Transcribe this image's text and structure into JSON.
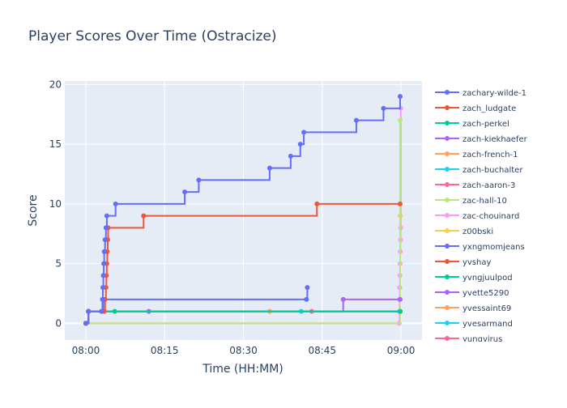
{
  "chart_data": {
    "type": "line",
    "line_shape": "step-after",
    "title": "Player Scores Over Time (Ostracize)",
    "xlabel": "Time (HH:MM)",
    "ylabel": "Score",
    "x_range": [
      "07:56",
      "09:04"
    ],
    "y_range": [
      -1.4,
      20.3
    ],
    "x_ticks": [
      {
        "value": "08:00",
        "label": "08:00"
      },
      {
        "value": "08:15",
        "label": "08:15"
      },
      {
        "value": "08:30",
        "label": "08:30"
      },
      {
        "value": "08:45",
        "label": "08:45"
      },
      {
        "value": "09:00",
        "label": "09:00"
      }
    ],
    "y_ticks": [
      0,
      5,
      10,
      15,
      20
    ],
    "grid": true,
    "legend_position": "right",
    "series": [
      {
        "name": "zachary-wilde-1",
        "color": "#636EFA",
        "points": [
          [
            "08:00",
            0
          ],
          [
            "08:00:30",
            1
          ],
          [
            "08:03",
            1
          ],
          [
            "08:03:10",
            2
          ],
          [
            "08:03:15",
            3
          ],
          [
            "08:03:20",
            4
          ],
          [
            "08:03:25",
            5
          ],
          [
            "08:03:30",
            6
          ],
          [
            "08:03:40",
            7
          ],
          [
            "08:03:50",
            8
          ],
          [
            "08:04",
            9
          ],
          [
            "08:05:40",
            10
          ],
          [
            "08:18:50",
            11
          ],
          [
            "08:21:30",
            12
          ],
          [
            "08:35",
            13
          ],
          [
            "08:39",
            14
          ],
          [
            "08:40:50",
            15
          ],
          [
            "08:41:30",
            16
          ],
          [
            "08:51:30",
            17
          ],
          [
            "08:56:40",
            18
          ],
          [
            "08:59:50",
            19
          ]
        ]
      },
      {
        "name": "zach_ludgate",
        "color": "#EF553B",
        "points": [
          [
            "08:00",
            0
          ],
          [
            "08:00:30",
            1
          ],
          [
            "08:03:30",
            1
          ],
          [
            "08:03:40",
            2
          ],
          [
            "08:03:50",
            3
          ],
          [
            "08:03:55",
            4
          ],
          [
            "08:04",
            5
          ],
          [
            "08:04:05",
            6
          ],
          [
            "08:04:10",
            7
          ],
          [
            "08:04:15",
            8
          ],
          [
            "08:11",
            9
          ],
          [
            "08:44",
            10
          ],
          [
            "08:59:50",
            10
          ]
        ]
      },
      {
        "name": "zach-perkel",
        "color": "#00CC96",
        "points": [
          [
            "08:00",
            0
          ],
          [
            "08:00:30",
            1
          ],
          [
            "08:05:30",
            1
          ],
          [
            "08:59:50",
            1
          ]
        ]
      },
      {
        "name": "zach-kiekhaefer",
        "color": "#AB63FA",
        "points": [
          [
            "08:00",
            0
          ],
          [
            "08:00:30",
            1
          ],
          [
            "08:12",
            1
          ],
          [
            "08:49",
            2
          ],
          [
            "08:59:50",
            2
          ]
        ]
      },
      {
        "name": "zach-french-1",
        "color": "#FFA15A",
        "points": [
          [
            "08:00",
            0
          ],
          [
            "08:00:30",
            1
          ],
          [
            "08:35",
            1
          ],
          [
            "08:59:50",
            1
          ]
        ]
      },
      {
        "name": "zach-buchalter",
        "color": "#19D3F3",
        "points": [
          [
            "08:00",
            0
          ],
          [
            "08:00:30",
            1
          ],
          [
            "08:41",
            1
          ],
          [
            "08:59:50",
            1
          ]
        ]
      },
      {
        "name": "zach-aaron-3",
        "color": "#FF6692",
        "points": [
          [
            "08:00",
            0
          ],
          [
            "08:00:30",
            1
          ],
          [
            "08:43",
            1
          ],
          [
            "08:59:50",
            1
          ]
        ]
      },
      {
        "name": "zac-hall-10",
        "color": "#B6E880",
        "points": [
          [
            "08:00",
            0
          ],
          [
            "08:59:50",
            17
          ]
        ]
      },
      {
        "name": "zac-chouinard",
        "color": "#FF97FF",
        "points": [
          [
            "08:00",
            0
          ],
          [
            "08:59:40",
            0
          ],
          [
            "08:59:42",
            1
          ],
          [
            "08:59:44",
            2
          ],
          [
            "08:59:46",
            3
          ],
          [
            "08:59:48",
            4
          ],
          [
            "08:59:50",
            5
          ],
          [
            "08:59:52",
            6
          ],
          [
            "08:59:54",
            7
          ],
          [
            "08:59:56",
            8
          ],
          [
            "08:59:58",
            18
          ]
        ]
      },
      {
        "name": "z00bski",
        "color": "#FECB52",
        "points": [
          [
            "08:00",
            0
          ],
          [
            "08:59:50",
            9
          ]
        ]
      },
      {
        "name": "yxngmomjeans",
        "color": "#636EFA",
        "points": [
          [
            "08:00",
            0
          ],
          [
            "08:00:30",
            1
          ],
          [
            "08:03",
            1
          ],
          [
            "08:03:20",
            2
          ],
          [
            "08:42",
            2
          ],
          [
            "08:42:10",
            3
          ]
        ]
      },
      {
        "name": "yvshay",
        "color": "#EF553B",
        "points": [
          [
            "08:00",
            0
          ],
          [
            "08:00:30",
            1
          ],
          [
            "08:59:50",
            1
          ]
        ]
      },
      {
        "name": "yvngjuulpod",
        "color": "#00CC96",
        "points": [
          [
            "08:00",
            0
          ],
          [
            "08:00:30",
            1
          ],
          [
            "08:59:50",
            1
          ]
        ]
      },
      {
        "name": "yvette5290",
        "color": "#AB63FA",
        "points": [
          [
            "08:00",
            0
          ],
          [
            "08:00:30",
            1
          ],
          [
            "08:59:50",
            1
          ]
        ]
      },
      {
        "name": "yvessaint69",
        "color": "#FFA15A",
        "points": [
          [
            "08:00",
            0
          ],
          [
            "08:00:30",
            1
          ],
          [
            "08:59:50",
            1
          ]
        ]
      },
      {
        "name": "yvesarmand",
        "color": "#19D3F3",
        "points": [
          [
            "08:00",
            0
          ],
          [
            "08:00:30",
            1
          ],
          [
            "08:59:50",
            1
          ]
        ]
      },
      {
        "name": "yungvirus",
        "color": "#FF6692",
        "points": [
          [
            "08:00",
            0
          ],
          [
            "08:00:30",
            1
          ],
          [
            "08:59:50",
            1
          ]
        ]
      }
    ]
  }
}
